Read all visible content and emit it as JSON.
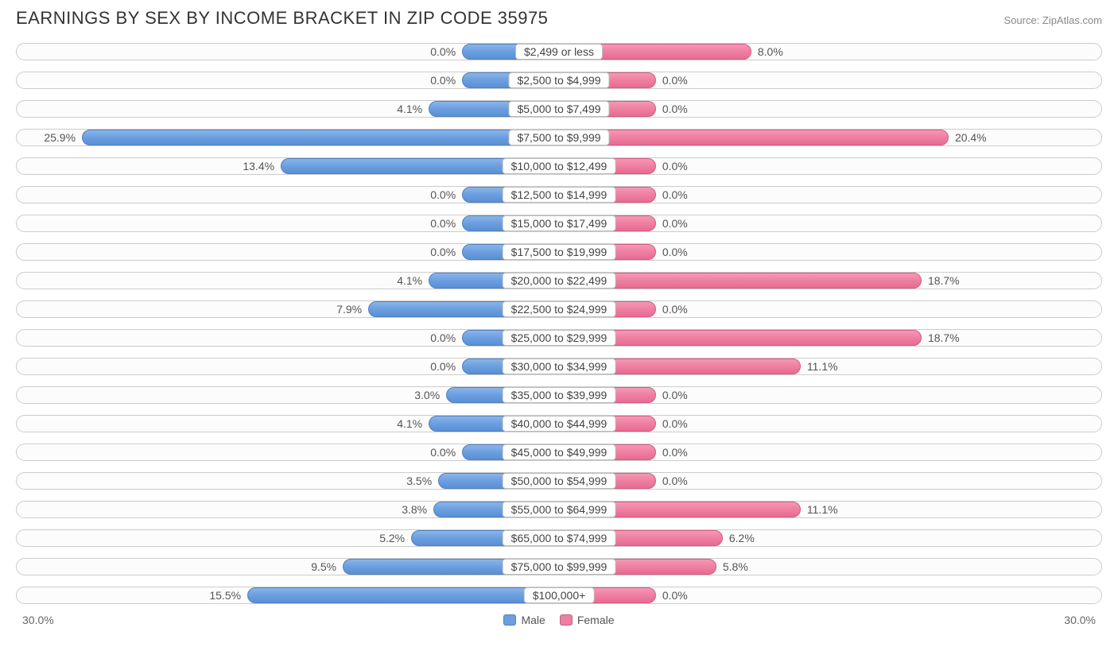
{
  "title": "EARNINGS BY SEX BY INCOME BRACKET IN ZIP CODE 35975",
  "source": "Source: ZipAtlas.com",
  "chart": {
    "type": "diverging-bar",
    "axis_max_pct": 30.0,
    "axis_label_left": "30.0%",
    "axis_label_right": "30.0%",
    "min_bar_pct": 2.0,
    "colors": {
      "male_fill": "#6b9fe0",
      "male_border": "#5080c0",
      "female_fill": "#ee7fa2",
      "female_border": "#d55a82",
      "pill_border": "#cccccc",
      "pill_bg": "#fcfcfc",
      "text": "#555555",
      "title_text": "#333333",
      "source_text": "#888888"
    },
    "legend": {
      "male": "Male",
      "female": "Female"
    },
    "rows": [
      {
        "label": "$2,499 or less",
        "male_pct": 0.0,
        "female_pct": 8.0,
        "male_txt": "0.0%",
        "female_txt": "8.0%"
      },
      {
        "label": "$2,500 to $4,999",
        "male_pct": 0.0,
        "female_pct": 0.0,
        "male_txt": "0.0%",
        "female_txt": "0.0%"
      },
      {
        "label": "$5,000 to $7,499",
        "male_pct": 4.1,
        "female_pct": 0.0,
        "male_txt": "4.1%",
        "female_txt": "0.0%"
      },
      {
        "label": "$7,500 to $9,999",
        "male_pct": 25.9,
        "female_pct": 20.4,
        "male_txt": "25.9%",
        "female_txt": "20.4%"
      },
      {
        "label": "$10,000 to $12,499",
        "male_pct": 13.4,
        "female_pct": 0.0,
        "male_txt": "13.4%",
        "female_txt": "0.0%"
      },
      {
        "label": "$12,500 to $14,999",
        "male_pct": 0.0,
        "female_pct": 0.0,
        "male_txt": "0.0%",
        "female_txt": "0.0%"
      },
      {
        "label": "$15,000 to $17,499",
        "male_pct": 0.0,
        "female_pct": 0.0,
        "male_txt": "0.0%",
        "female_txt": "0.0%"
      },
      {
        "label": "$17,500 to $19,999",
        "male_pct": 0.0,
        "female_pct": 0.0,
        "male_txt": "0.0%",
        "female_txt": "0.0%"
      },
      {
        "label": "$20,000 to $22,499",
        "male_pct": 4.1,
        "female_pct": 18.7,
        "male_txt": "4.1%",
        "female_txt": "18.7%"
      },
      {
        "label": "$22,500 to $24,999",
        "male_pct": 7.9,
        "female_pct": 0.0,
        "male_txt": "7.9%",
        "female_txt": "0.0%"
      },
      {
        "label": "$25,000 to $29,999",
        "male_pct": 0.0,
        "female_pct": 18.7,
        "male_txt": "0.0%",
        "female_txt": "18.7%"
      },
      {
        "label": "$30,000 to $34,999",
        "male_pct": 0.0,
        "female_pct": 11.1,
        "male_txt": "0.0%",
        "female_txt": "11.1%"
      },
      {
        "label": "$35,000 to $39,999",
        "male_pct": 3.0,
        "female_pct": 0.0,
        "male_txt": "3.0%",
        "female_txt": "0.0%"
      },
      {
        "label": "$40,000 to $44,999",
        "male_pct": 4.1,
        "female_pct": 0.0,
        "male_txt": "4.1%",
        "female_txt": "0.0%"
      },
      {
        "label": "$45,000 to $49,999",
        "male_pct": 0.0,
        "female_pct": 0.0,
        "male_txt": "0.0%",
        "female_txt": "0.0%"
      },
      {
        "label": "$50,000 to $54,999",
        "male_pct": 3.5,
        "female_pct": 0.0,
        "male_txt": "3.5%",
        "female_txt": "0.0%"
      },
      {
        "label": "$55,000 to $64,999",
        "male_pct": 3.8,
        "female_pct": 11.1,
        "male_txt": "3.8%",
        "female_txt": "11.1%"
      },
      {
        "label": "$65,000 to $74,999",
        "male_pct": 5.2,
        "female_pct": 6.2,
        "male_txt": "5.2%",
        "female_txt": "6.2%"
      },
      {
        "label": "$75,000 to $99,999",
        "male_pct": 9.5,
        "female_pct": 5.8,
        "male_txt": "9.5%",
        "female_txt": "5.8%"
      },
      {
        "label": "$100,000+",
        "male_pct": 15.5,
        "female_pct": 0.0,
        "male_txt": "15.5%",
        "female_txt": "0.0%"
      }
    ]
  }
}
